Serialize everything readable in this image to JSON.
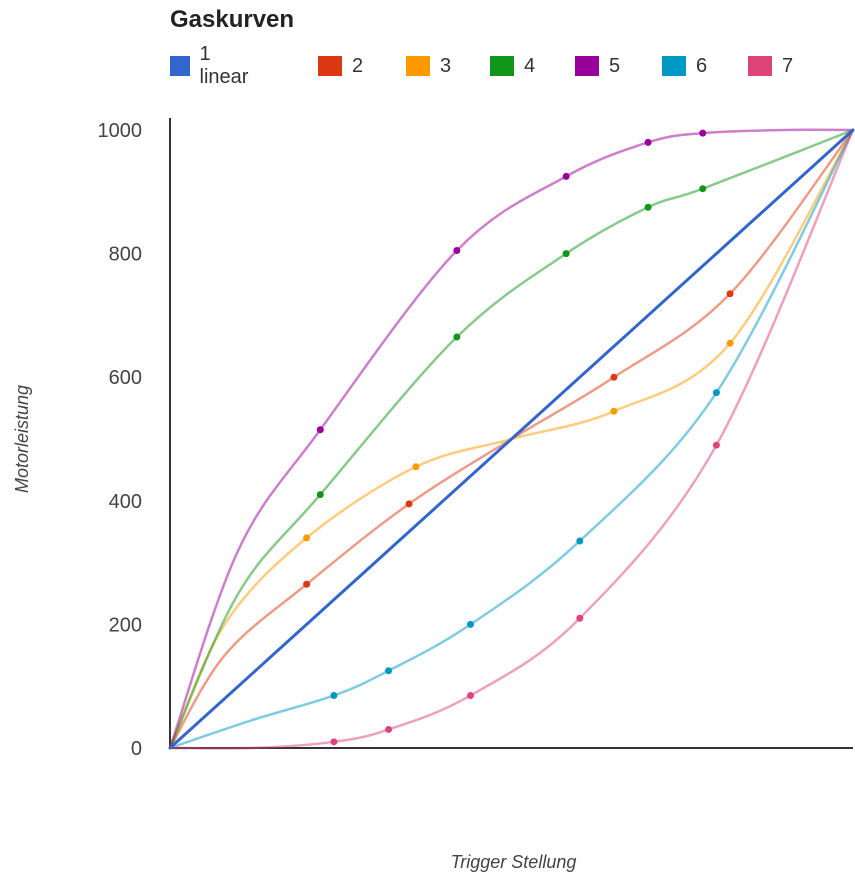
{
  "chart_data": {
    "type": "line",
    "title": "Gaskurven",
    "xlabel": "Trigger Stellung",
    "ylabel": "Motorleistung",
    "ylim": [
      0,
      1000
    ],
    "xlim": [
      0,
      100
    ],
    "yticks": [
      "0",
      "200",
      "400",
      "600",
      "800",
      "1000"
    ],
    "grid": false,
    "legend_position": "top",
    "series": [
      {
        "name": "1 linear",
        "color": "#3366cc",
        "points": [
          [
            0,
            0
          ],
          [
            100,
            1000
          ]
        ],
        "markers": []
      },
      {
        "name": "2",
        "color": "#dc3912",
        "points": [
          [
            0,
            0
          ],
          [
            8,
            150
          ],
          [
            20,
            265
          ],
          [
            35,
            395
          ],
          [
            50,
            500
          ],
          [
            65,
            600
          ],
          [
            82,
            735
          ],
          [
            100,
            1000
          ]
        ],
        "markers": [
          [
            20,
            265
          ],
          [
            35,
            395
          ],
          [
            65,
            600
          ],
          [
            82,
            735
          ]
        ]
      },
      {
        "name": "3",
        "color": "#ff9900",
        "points": [
          [
            0,
            0
          ],
          [
            8,
            200
          ],
          [
            20,
            340
          ],
          [
            36,
            455
          ],
          [
            50,
            500
          ],
          [
            65,
            545
          ],
          [
            82,
            655
          ],
          [
            100,
            1000
          ]
        ],
        "markers": [
          [
            20,
            340
          ],
          [
            36,
            455
          ],
          [
            65,
            545
          ],
          [
            82,
            655
          ]
        ]
      },
      {
        "name": "4",
        "color": "#109618",
        "points": [
          [
            0,
            0
          ],
          [
            10,
            250
          ],
          [
            22,
            410
          ],
          [
            42,
            665
          ],
          [
            58,
            800
          ],
          [
            70,
            875
          ],
          [
            78,
            905
          ],
          [
            100,
            1000
          ]
        ],
        "markers": [
          [
            22,
            410
          ],
          [
            42,
            665
          ],
          [
            58,
            800
          ],
          [
            70,
            875
          ],
          [
            78,
            905
          ]
        ]
      },
      {
        "name": "5",
        "color": "#990099",
        "points": [
          [
            0,
            0
          ],
          [
            10,
            320
          ],
          [
            22,
            515
          ],
          [
            42,
            805
          ],
          [
            58,
            925
          ],
          [
            70,
            980
          ],
          [
            78,
            995
          ],
          [
            90,
            1000
          ],
          [
            100,
            1000
          ]
        ],
        "markers": [
          [
            22,
            515
          ],
          [
            42,
            805
          ],
          [
            58,
            925
          ],
          [
            70,
            980
          ],
          [
            78,
            995
          ]
        ]
      },
      {
        "name": "6",
        "color": "#0099c6",
        "points": [
          [
            0,
            0
          ],
          [
            12,
            45
          ],
          [
            24,
            85
          ],
          [
            32,
            125
          ],
          [
            44,
            200
          ],
          [
            60,
            335
          ],
          [
            80,
            575
          ],
          [
            100,
            1000
          ]
        ],
        "markers": [
          [
            24,
            85
          ],
          [
            32,
            125
          ],
          [
            44,
            200
          ],
          [
            60,
            335
          ],
          [
            80,
            575
          ]
        ]
      },
      {
        "name": "7",
        "color": "#dd4477",
        "points": [
          [
            0,
            0
          ],
          [
            12,
            0
          ],
          [
            24,
            10
          ],
          [
            32,
            30
          ],
          [
            44,
            85
          ],
          [
            60,
            210
          ],
          [
            80,
            490
          ],
          [
            100,
            1000
          ]
        ],
        "markers": [
          [
            24,
            10
          ],
          [
            32,
            30
          ],
          [
            44,
            85
          ],
          [
            60,
            210
          ],
          [
            80,
            490
          ]
        ]
      }
    ]
  }
}
